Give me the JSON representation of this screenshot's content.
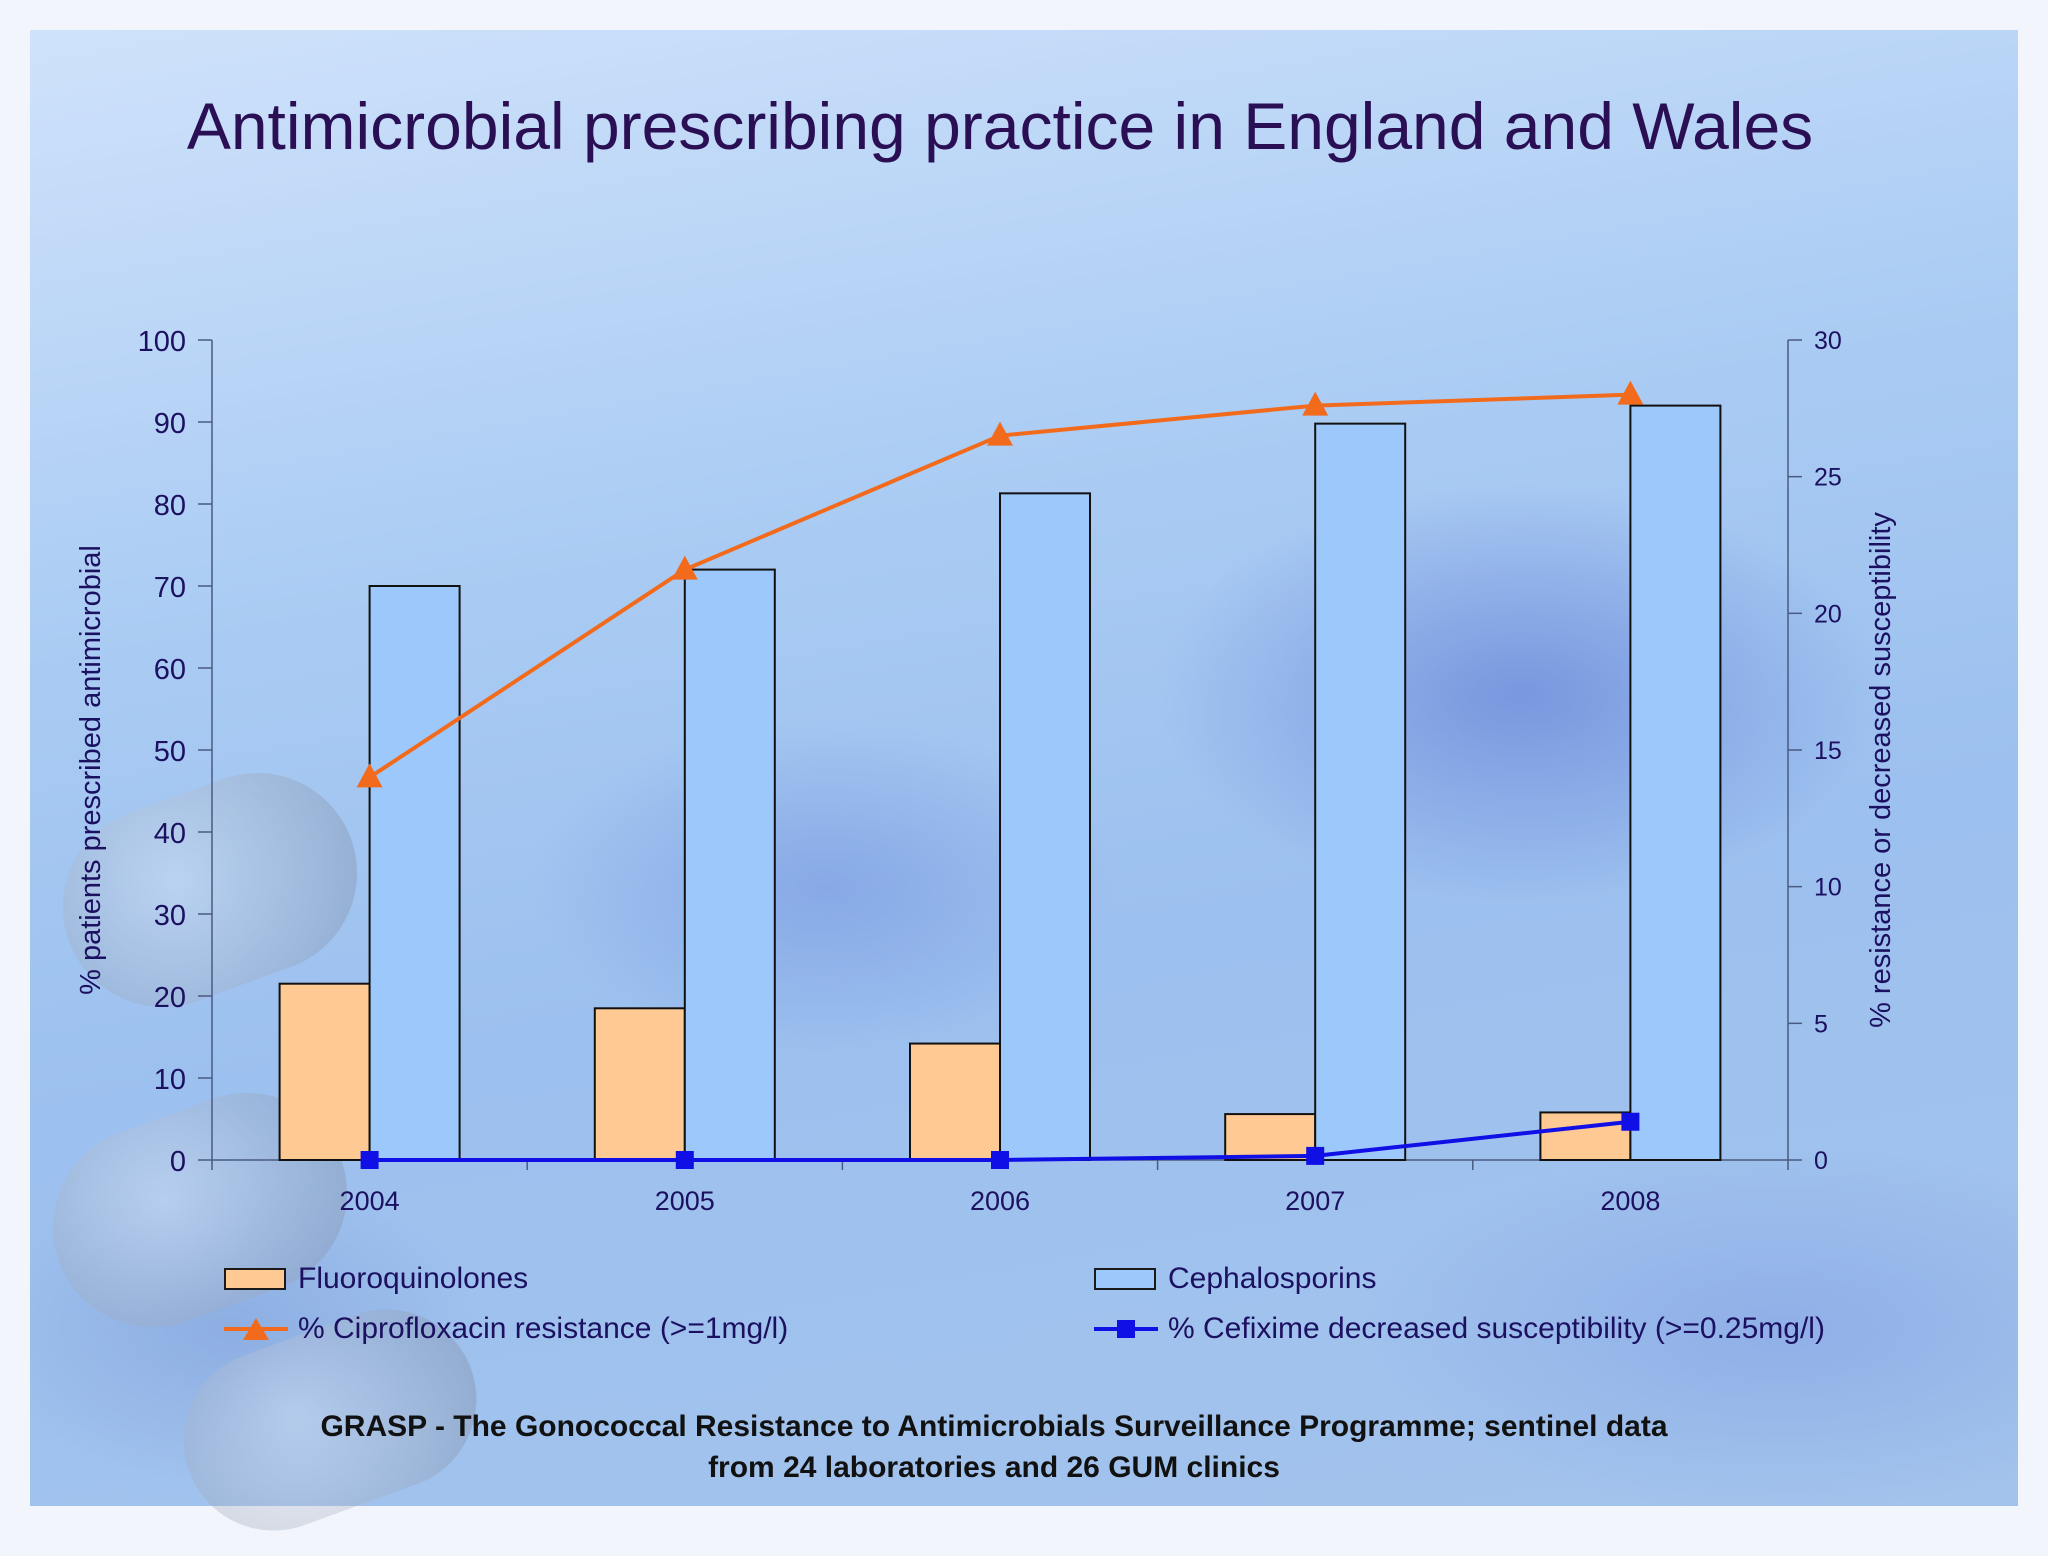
{
  "title": "Antimicrobial prescribing practice in England and Wales",
  "footer": {
    "line1": "GRASP - The Gonococcal Resistance to Antimicrobials Surveillance Programme; sentinel data",
    "line2": "from 24 laboratories and 26 GUM clinics"
  },
  "chart_data": {
    "type": "bar",
    "categories": [
      "2004",
      "2005",
      "2006",
      "2007",
      "2008"
    ],
    "series": [
      {
        "name": "Fluoroquinolones",
        "type": "bar",
        "axis": "left",
        "color": "#ffc993",
        "values": [
          21.5,
          18.5,
          14.2,
          5.6,
          5.8
        ]
      },
      {
        "name": "Cephalosporins",
        "type": "bar",
        "axis": "left",
        "color": "#9dc8fc",
        "values": [
          70,
          72,
          81.3,
          89.8,
          92
        ]
      },
      {
        "name": "% Ciprofloxacin resistance (>=1mg/l)",
        "type": "line",
        "axis": "right",
        "color": "#f26b1d",
        "marker": "triangle",
        "values": [
          14,
          21.6,
          26.5,
          27.6,
          28
        ]
      },
      {
        "name": "% Cefixime decreased susceptibility (>=0.25mg/l)",
        "type": "line",
        "axis": "right",
        "color": "#1010e6",
        "marker": "square",
        "values": [
          0,
          0,
          0,
          0.15,
          1.4
        ]
      }
    ],
    "ylabel": "% patients prescribed antimicrobial",
    "ylabel_right": "% resistance or decreased susceptibility",
    "ylim": [
      0,
      100
    ],
    "ylim_right": [
      0,
      30
    ],
    "yticks": [
      0,
      10,
      20,
      30,
      40,
      50,
      60,
      70,
      80,
      90,
      100
    ],
    "yticks_right": [
      0,
      5,
      10,
      15,
      20,
      25,
      30
    ],
    "grid": false,
    "legend_position": "bottom"
  }
}
